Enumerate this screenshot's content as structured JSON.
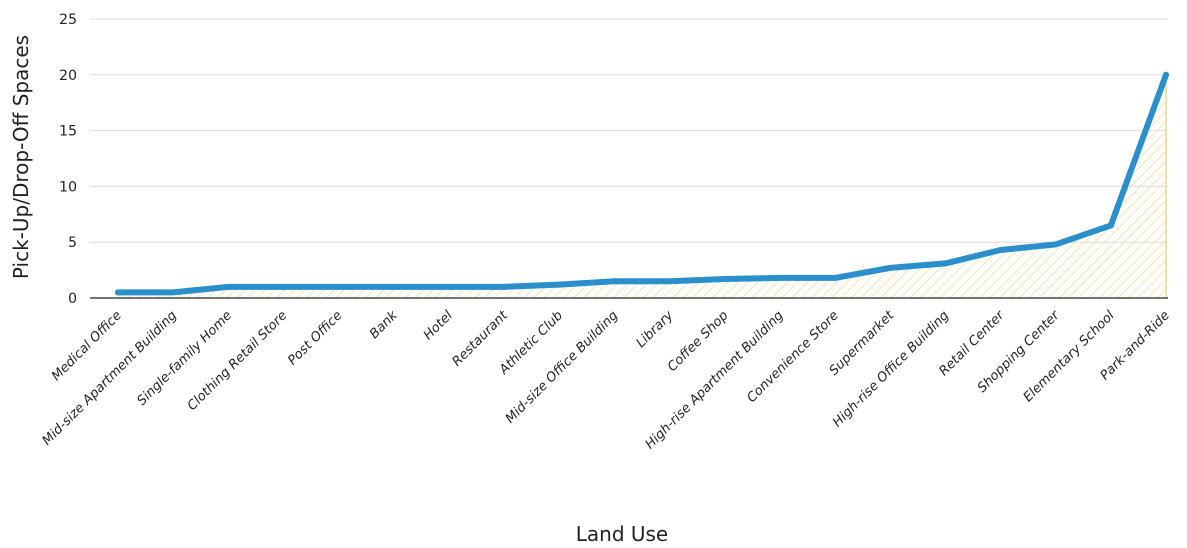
{
  "chart_data": {
    "type": "area",
    "categories": [
      "Medical Office",
      "Mid-size Apartment Building",
      "Single-family Home",
      "Clothing Retail Store",
      "Post Office",
      "Bank",
      "Hotel",
      "Restaurant",
      "Athletic Club",
      "Mid-size Office Building",
      "Library",
      "Coffee Shop",
      "High-rise Apartment Building",
      "Convenience Store",
      "Supermarket",
      "High-rise Office Building",
      "Retail Center",
      "Shopping Center",
      "Elementary School",
      "Park-and-Ride"
    ],
    "values": [
      0.5,
      0.5,
      1.0,
      1.0,
      1.0,
      1.0,
      1.0,
      1.0,
      1.2,
      1.5,
      1.5,
      1.7,
      1.8,
      1.8,
      2.7,
      3.1,
      4.3,
      4.8,
      6.5,
      20.0
    ],
    "xlabel": "Land Use",
    "ylabel": "Pick-Up/Drop-Off Spaces",
    "ylim": [
      0,
      25
    ],
    "yticks": [
      0,
      5,
      10,
      15,
      20,
      25
    ],
    "grid": true,
    "colors": {
      "line": "#2a8fcb",
      "fill_hatch": "#e6d98a",
      "grid": "#dcdcdc",
      "axis": "#222222"
    }
  }
}
